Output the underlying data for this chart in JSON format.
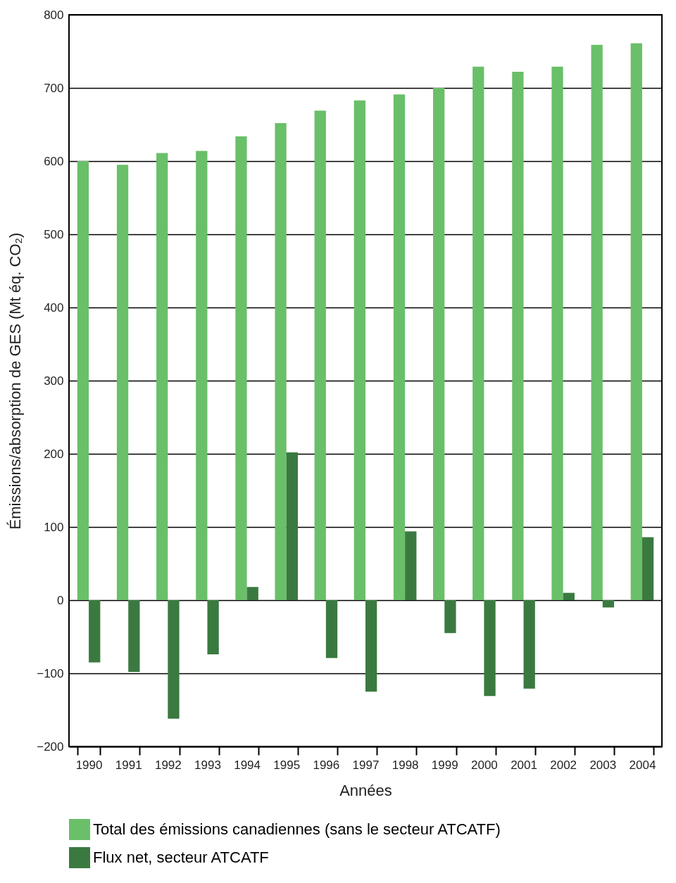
{
  "chart_data": {
    "type": "bar",
    "xlabel": "Années",
    "ylabel": "Émissions/absorption de GES (Mt éq. CO₂)",
    "categories": [
      "1990",
      "1991",
      "1992",
      "1993",
      "1994",
      "1995",
      "1996",
      "1997",
      "1998",
      "1999",
      "2000",
      "2001",
      "2002",
      "2003",
      "2004"
    ],
    "series": [
      {
        "name": "Total des émissions canadiennes (sans le secteur ATCATF)",
        "color": "#6abf69",
        "values": [
          600,
          595,
          611,
          614,
          634,
          652,
          669,
          683,
          691,
          700,
          729,
          722,
          729,
          759,
          761
        ]
      },
      {
        "name": "Flux net, secteur ATCATF",
        "color": "#3a7a40",
        "values": [
          -85,
          -98,
          -162,
          -74,
          18,
          202,
          -79,
          -125,
          94,
          -45,
          -131,
          -121,
          10,
          -10,
          86
        ]
      }
    ],
    "ylim": [
      -200,
      800
    ],
    "yticks": [
      -200,
      -100,
      0,
      100,
      200,
      300,
      400,
      500,
      600,
      700,
      800
    ],
    "grid": "y",
    "legend": "bottom"
  }
}
